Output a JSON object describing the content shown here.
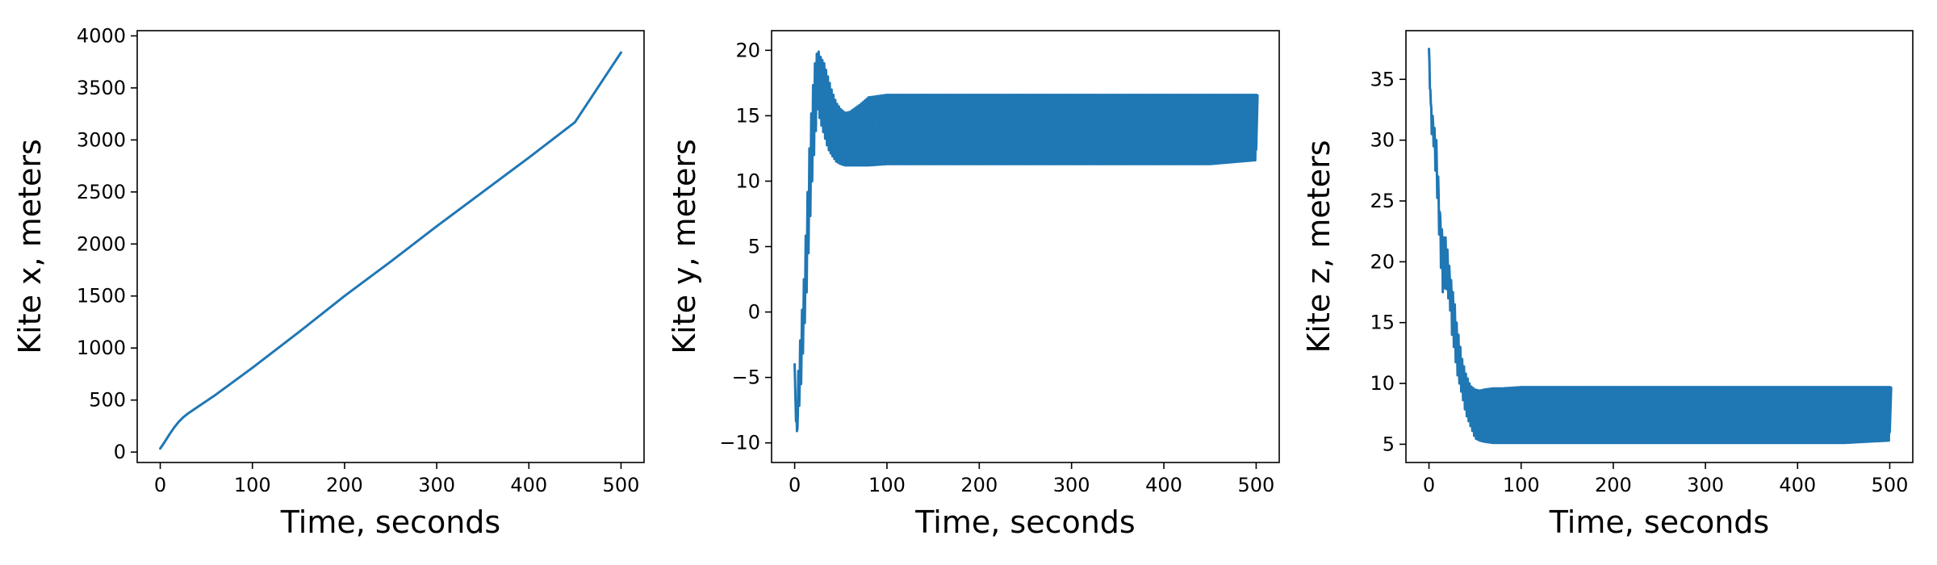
{
  "chart_data": [
    {
      "type": "line",
      "xlabel": "Time, seconds",
      "ylabel": "Kite x, meters",
      "xlim": [
        -25,
        525
      ],
      "ylim": [
        -100,
        4050
      ],
      "xticks": [
        0,
        100,
        200,
        300,
        400,
        500
      ],
      "yticks": [
        0,
        500,
        1000,
        1500,
        2000,
        2500,
        3000,
        3500,
        4000
      ],
      "series": [
        {
          "color": "#1f77b4",
          "x": [
            0,
            5,
            10,
            15,
            20,
            25,
            30,
            40,
            50,
            60,
            80,
            100,
            150,
            200,
            250,
            300,
            350,
            400,
            450,
            500
          ],
          "y": [
            35,
            100,
            170,
            235,
            290,
            335,
            370,
            430,
            490,
            550,
            680,
            810,
            1150,
            1500,
            1830,
            2170,
            2500,
            2830,
            3170,
            3840
          ]
        }
      ]
    },
    {
      "type": "line",
      "xlabel": "Time, seconds",
      "ylabel": "Kite y, meters",
      "xlim": [
        -25,
        525
      ],
      "ylim": [
        -11.5,
        21.5
      ],
      "xticks": [
        0,
        100,
        200,
        300,
        400,
        500
      ],
      "yticks": [
        -10,
        -5,
        0,
        5,
        10,
        15,
        20
      ],
      "series": [
        {
          "color": "#1f77b4",
          "x": [
            0,
            2,
            4,
            7,
            10,
            13,
            16,
            19,
            22,
            25,
            28,
            32,
            36,
            40,
            45,
            50,
            55,
            60,
            70,
            80,
            100,
            150,
            200,
            250,
            300,
            350,
            400,
            450,
            500
          ],
          "y": [
            -4.0,
            -9.8,
            -7.0,
            -3.5,
            0.0,
            4.5,
            9.0,
            13.0,
            16.0,
            18.5,
            19.5,
            18.0,
            16.5,
            15.5,
            15.0,
            14.5,
            14.0,
            13.8,
            13.8,
            13.9,
            14.0,
            14.0,
            14.0,
            14.0,
            14.0,
            14.0,
            14.0,
            14.0,
            14.0
          ],
          "band_upper": [
            -4.0,
            -7.0,
            -4.5,
            -1.0,
            2.5,
            7.5,
            12.5,
            16.5,
            19.0,
            20.1,
            19.5,
            19.0,
            18.0,
            17.0,
            16.0,
            15.5,
            15.2,
            15.3,
            15.8,
            16.4,
            16.6,
            16.6,
            16.6,
            16.6,
            16.6,
            16.6,
            16.6,
            16.6,
            16.6
          ],
          "band_lower": [
            -4.0,
            -9.8,
            -8.0,
            -5.5,
            -2.0,
            1.5,
            6.0,
            10.0,
            13.0,
            15.5,
            14.5,
            13.5,
            12.5,
            12.0,
            11.5,
            11.3,
            11.2,
            11.2,
            11.2,
            11.2,
            11.3,
            11.3,
            11.3,
            11.3,
            11.3,
            11.3,
            11.3,
            11.3,
            11.6
          ]
        }
      ]
    },
    {
      "type": "line",
      "xlabel": "Time, seconds",
      "ylabel": "Kite z, meters",
      "xlim": [
        -25,
        525
      ],
      "ylim": [
        3.5,
        39.0
      ],
      "xticks": [
        0,
        100,
        200,
        300,
        400,
        500
      ],
      "yticks": [
        5,
        10,
        15,
        20,
        25,
        30,
        35
      ],
      "series": [
        {
          "color": "#1f77b4",
          "x": [
            0,
            2,
            5,
            8,
            10,
            12,
            15,
            18,
            20,
            23,
            25,
            28,
            30,
            33,
            36,
            40,
            45,
            50,
            55,
            60,
            70,
            80,
            100,
            150,
            200,
            250,
            300,
            350,
            400,
            450,
            500
          ],
          "y": [
            37.5,
            33.0,
            31.0,
            28.5,
            26.0,
            23.5,
            21.5,
            20.5,
            20.0,
            18.5,
            17.0,
            15.0,
            13.5,
            12.0,
            11.0,
            9.5,
            8.5,
            7.8,
            7.5,
            7.3,
            7.2,
            7.2,
            7.2,
            7.2,
            7.2,
            7.2,
            7.2,
            7.2,
            7.2,
            7.2,
            7.2
          ],
          "band_upper": [
            37.5,
            33.0,
            31.5,
            30.0,
            27.0,
            24.0,
            22.0,
            22.0,
            21.0,
            19.0,
            18.0,
            16.5,
            15.0,
            13.5,
            12.0,
            10.8,
            9.8,
            9.5,
            9.4,
            9.5,
            9.6,
            9.6,
            9.7,
            9.7,
            9.7,
            9.7,
            9.7,
            9.7,
            9.7,
            9.7,
            9.7
          ],
          "band_lower": [
            37.5,
            31.0,
            29.5,
            26.5,
            24.0,
            20.5,
            17.5,
            18.0,
            17.5,
            16.0,
            14.0,
            12.5,
            11.0,
            10.0,
            9.0,
            7.5,
            6.5,
            5.5,
            5.3,
            5.2,
            5.1,
            5.1,
            5.1,
            5.1,
            5.1,
            5.1,
            5.1,
            5.1,
            5.1,
            5.1,
            5.3
          ]
        }
      ]
    }
  ]
}
